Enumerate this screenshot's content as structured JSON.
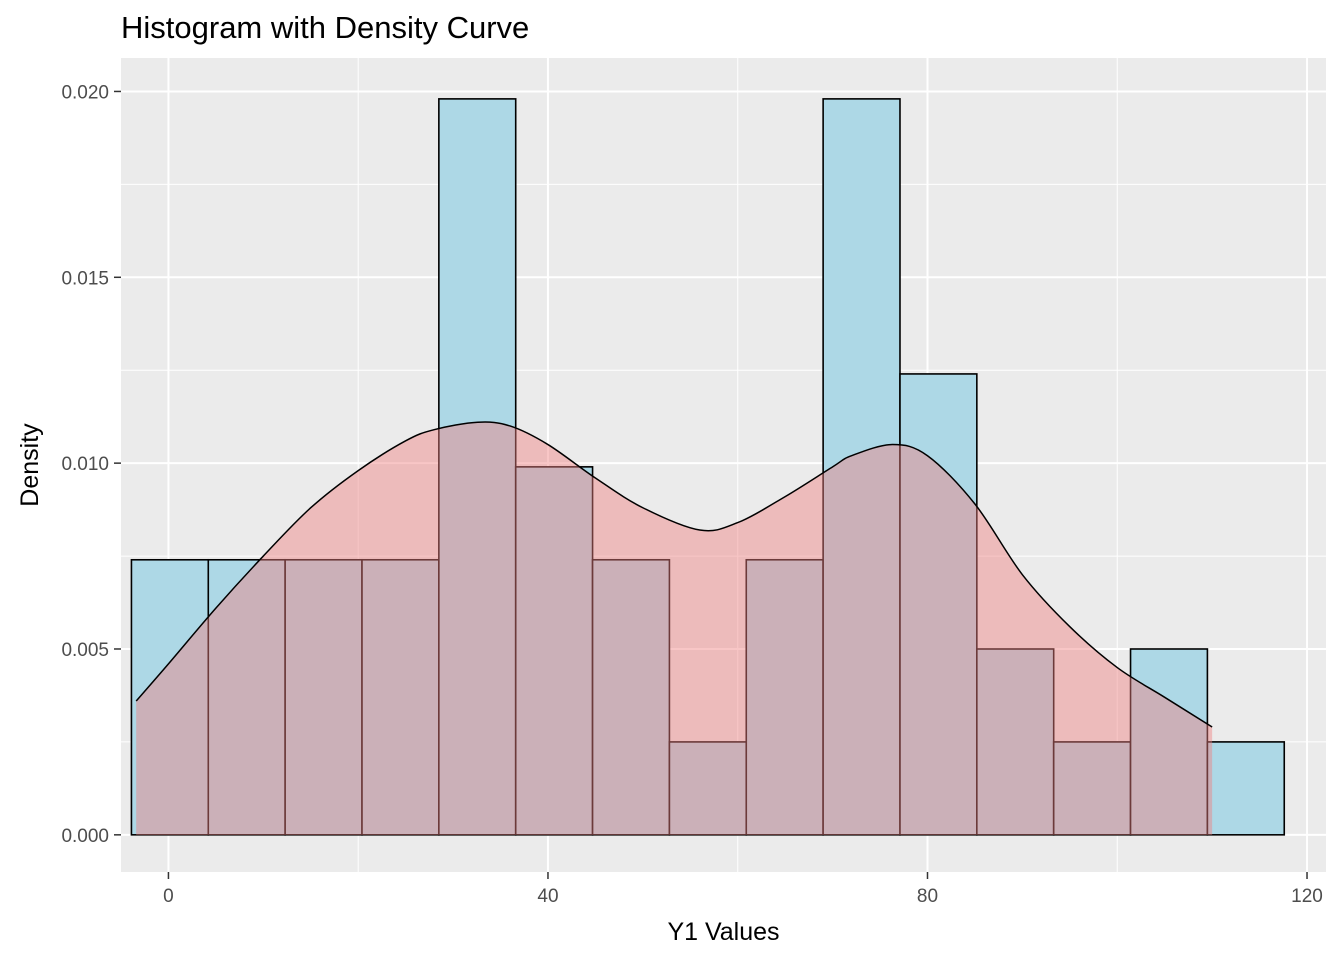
{
  "chart_data": {
    "type": "histogram",
    "title": "Histogram with Density Curve",
    "xlabel": "Y1 Values",
    "ylabel": "Density",
    "xlim": [
      -5,
      122
    ],
    "ylim": [
      -0.001,
      0.0209
    ],
    "x_ticks": [
      0,
      40,
      80,
      120
    ],
    "x_tick_labels": [
      "0",
      "40",
      "80",
      "120"
    ],
    "y_ticks": [
      0,
      0.005,
      0.01,
      0.015,
      0.02
    ],
    "y_tick_labels": [
      "0.000",
      "0.005",
      "0.010",
      "0.015",
      "0.020"
    ],
    "grid": true,
    "bins": {
      "edges": [
        -3.9,
        4.2,
        12.3,
        20.4,
        28.5,
        36.6,
        44.7,
        52.8,
        60.9,
        69.0,
        77.1,
        85.2,
        93.3,
        101.4,
        109.5,
        117.6
      ],
      "density": [
        0.0074,
        0.0074,
        0.0074,
        0.0074,
        0.0198,
        0.0099,
        0.0074,
        0.0025,
        0.0074,
        0.0198,
        0.0124,
        0.005,
        0.0025,
        0.005,
        0.0025
      ],
      "fill": "#add8e6",
      "outline": "#000000"
    },
    "density_curve": {
      "x": [
        -3.4,
        0,
        5,
        10,
        15,
        20,
        25,
        28,
        32.6,
        36,
        40,
        45,
        50,
        56,
        60,
        65,
        70,
        72,
        76.3,
        80,
        85,
        90,
        95,
        100,
        105,
        110
      ],
      "y": [
        0.0036,
        0.0046,
        0.0061,
        0.0075,
        0.0088,
        0.0098,
        0.0106,
        0.0109,
        0.0111,
        0.011,
        0.0105,
        0.0096,
        0.0088,
        0.0082,
        0.0084,
        0.0091,
        0.0099,
        0.0102,
        0.0105,
        0.0102,
        0.0089,
        0.007,
        0.0056,
        0.0045,
        0.0037,
        0.0029
      ],
      "fill": "#f08080",
      "fill_opacity": 0.45,
      "line_color": "#000000"
    },
    "panel_background": "#ebebeb",
    "grid_color": "#ffffff"
  }
}
